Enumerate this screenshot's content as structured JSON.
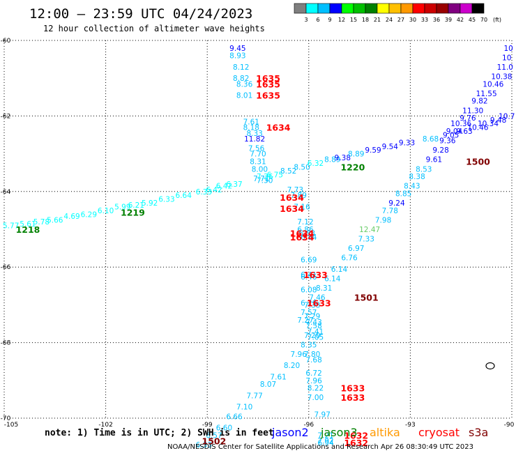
{
  "title": "12:00 — 23:59 UTC 04/24/2023",
  "subtitle": "12 hour collection of altimeter wave heights",
  "colorbar": {
    "labels": [
      "3",
      "6",
      "9",
      "12",
      "15",
      "18",
      "21",
      "24",
      "27",
      "30",
      "33",
      "36",
      "39",
      "42",
      "45",
      "70",
      "(ft)"
    ],
    "colors": [
      "#7f7f7f",
      "#00ffff",
      "#00bfff",
      "#0000ff",
      "#00ff00",
      "#00c000",
      "#008000",
      "#ffff00",
      "#ffc000",
      "#ff9900",
      "#ff0000",
      "#cc0000",
      "#990000",
      "#800080",
      "#cc00cc",
      "#000000"
    ]
  },
  "note": "note: 1) Time is in UTC; 2) SWH is in feet",
  "legend": [
    {
      "name": "jason2",
      "color": "#0000ff"
    },
    {
      "name": "jason3",
      "color": "#008000"
    },
    {
      "name": "altika",
      "color": "#ff9900"
    },
    {
      "name": "cryosat",
      "color": "#ff0000"
    },
    {
      "name": "s3a",
      "color": "#800000"
    }
  ],
  "credit": "NOAA/NESDIS Center for Satellite Applications and Research   Apr 26 08:30:49 UTC 2023",
  "chart_data": {
    "type": "scatter",
    "xlim": [
      -105,
      -90
    ],
    "ylim": [
      -70,
      -60
    ],
    "x_ticks": [
      -105,
      -102,
      -99,
      -96,
      -93,
      -90
    ],
    "x_tick_labels": [
      "-105",
      "-102",
      "-99",
      "-96",
      "-93",
      "-90"
    ],
    "y_ticks": [
      -60,
      -62,
      -64,
      -66,
      -68,
      -70
    ],
    "y_tick_labels": [
      "-60",
      "-62",
      "-64",
      "-66",
      "-68",
      "-70"
    ],
    "grid": true,
    "points": [
      {
        "lon": -98.1,
        "lat": -60.2,
        "v": "9.45",
        "c": "#0000ff"
      },
      {
        "lon": -98.1,
        "lat": -60.4,
        "v": "8.93",
        "c": "#00bfff"
      },
      {
        "lon": -98.0,
        "lat": -60.7,
        "v": "8.12",
        "c": "#00bfff"
      },
      {
        "lon": -98.0,
        "lat": -61.0,
        "v": "8.82",
        "c": "#00bfff"
      },
      {
        "lon": -97.9,
        "lat": -61.15,
        "v": "8.36",
        "c": "#00bfff"
      },
      {
        "lon": -97.9,
        "lat": -61.45,
        "v": "8.01",
        "c": "#00bfff"
      },
      {
        "lon": -97.7,
        "lat": -62.15,
        "v": "7.61",
        "c": "#00bfff"
      },
      {
        "lon": -97.7,
        "lat": -62.3,
        "v": "8.18",
        "c": "#00bfff"
      },
      {
        "lon": -97.6,
        "lat": -62.45,
        "v": "8.33",
        "c": "#00bfff"
      },
      {
        "lon": -97.6,
        "lat": -62.6,
        "v": "11.82",
        "c": "#0000ff"
      },
      {
        "lon": -97.55,
        "lat": -62.85,
        "v": "7.56",
        "c": "#00bfff"
      },
      {
        "lon": -97.5,
        "lat": -63.0,
        "v": "7.70",
        "c": "#00bfff"
      },
      {
        "lon": -97.5,
        "lat": -63.2,
        "v": "8.31",
        "c": "#00bfff"
      },
      {
        "lon": -97.45,
        "lat": -63.4,
        "v": "8.00",
        "c": "#00bfff"
      },
      {
        "lon": -97.4,
        "lat": -63.65,
        "v": "7.71",
        "c": "#00bfff"
      },
      {
        "lon": -97.3,
        "lat": -63.7,
        "v": "7.30",
        "c": "#00bfff"
      },
      {
        "lon": -96.4,
        "lat": -63.95,
        "v": "7.73",
        "c": "#00bfff"
      },
      {
        "lon": -96.3,
        "lat": -64.1,
        "v": "7.89",
        "c": "#00bfff"
      },
      {
        "lon": -96.2,
        "lat": -64.4,
        "v": "7.16",
        "c": "#00bfff"
      },
      {
        "lon": -96.1,
        "lat": -64.8,
        "v": "7.12",
        "c": "#00bfff"
      },
      {
        "lon": -96.1,
        "lat": -65.0,
        "v": "6.86",
        "c": "#00bfff"
      },
      {
        "lon": -96.05,
        "lat": -65.1,
        "v": "6.88",
        "c": "#00bfff"
      },
      {
        "lon": -96.0,
        "lat": -65.2,
        "v": "6.84",
        "c": "#00bfff"
      },
      {
        "lon": -96.0,
        "lat": -65.8,
        "v": "6.69",
        "c": "#00bfff"
      },
      {
        "lon": -96.0,
        "lat": -66.2,
        "v": "6.41",
        "c": "#00bfff"
      },
      {
        "lon": -96.0,
        "lat": -66.25,
        "v": "6.46",
        "c": "#00bfff"
      },
      {
        "lon": -96.0,
        "lat": -66.6,
        "v": "6.08",
        "c": "#00bfff"
      },
      {
        "lon": -96.0,
        "lat": -66.95,
        "v": "6.29",
        "c": "#00bfff"
      },
      {
        "lon": -95.9,
        "lat": -67.3,
        "v": "7.29",
        "c": "#00bfff"
      },
      {
        "lon": -95.85,
        "lat": -67.45,
        "v": "7.43",
        "c": "#00bfff"
      },
      {
        "lon": -95.85,
        "lat": -67.55,
        "v": "7.58",
        "c": "#00bfff"
      },
      {
        "lon": -95.8,
        "lat": -67.7,
        "v": "7.41",
        "c": "#00bfff"
      },
      {
        "lon": -95.9,
        "lat": -67.8,
        "v": "7.20",
        "c": "#00bfff"
      },
      {
        "lon": -95.8,
        "lat": -67.85,
        "v": "7.05",
        "c": "#00bfff"
      },
      {
        "lon": -96.0,
        "lat": -68.05,
        "v": "8.35",
        "c": "#00bfff"
      },
      {
        "lon": -96.3,
        "lat": -68.3,
        "v": "7.96",
        "c": "#00bfff"
      },
      {
        "lon": -96.5,
        "lat": -68.6,
        "v": "8.20",
        "c": "#00bfff"
      },
      {
        "lon": -96.9,
        "lat": -68.9,
        "v": "7.61",
        "c": "#00bfff"
      },
      {
        "lon": -97.2,
        "lat": -69.1,
        "v": "8.07",
        "c": "#00bfff"
      },
      {
        "lon": -97.6,
        "lat": -69.4,
        "v": "7.77",
        "c": "#00bfff"
      },
      {
        "lon": -97.9,
        "lat": -69.7,
        "v": "7.10",
        "c": "#00bfff"
      },
      {
        "lon": -98.2,
        "lat": -69.95,
        "v": "6.66",
        "c": "#00bfff"
      },
      {
        "lon": -98.5,
        "lat": -70.25,
        "v": "6.60",
        "c": "#00bfff"
      },
      {
        "lon": -98.8,
        "lat": -70.45,
        "v": "6.57",
        "c": "#00bfff"
      },
      {
        "lon": -99.1,
        "lat": -70.7,
        "v": "6.33",
        "c": "#00bfff"
      },
      {
        "lon": -104.8,
        "lat": -64.9,
        "v": "5.77",
        "c": "#00ffff"
      },
      {
        "lon": -104.3,
        "lat": -64.85,
        "v": "5.61",
        "c": "#00ffff"
      },
      {
        "lon": -103.9,
        "lat": -64.8,
        "v": "5.78",
        "c": "#00ffff"
      },
      {
        "lon": -103.5,
        "lat": -64.75,
        "v": "5.66",
        "c": "#00ffff"
      },
      {
        "lon": -103.0,
        "lat": -64.65,
        "v": "4.69",
        "c": "#00ffff"
      },
      {
        "lon": -102.5,
        "lat": -64.6,
        "v": "6.29",
        "c": "#00ffff"
      },
      {
        "lon": -102.0,
        "lat": -64.5,
        "v": "6.10",
        "c": "#00ffff"
      },
      {
        "lon": -101.5,
        "lat": -64.4,
        "v": "5.99",
        "c": "#00ffff"
      },
      {
        "lon": -101.1,
        "lat": -64.35,
        "v": "6.21",
        "c": "#00ffff"
      },
      {
        "lon": -100.7,
        "lat": -64.3,
        "v": "5.92",
        "c": "#00ffff"
      },
      {
        "lon": -100.2,
        "lat": -64.2,
        "v": "6.33",
        "c": "#00ffff"
      },
      {
        "lon": -99.7,
        "lat": -64.1,
        "v": "6.64",
        "c": "#00ffff"
      },
      {
        "lon": -99.1,
        "lat": -64.0,
        "v": "6.33",
        "c": "#00ffff"
      },
      {
        "lon": -98.8,
        "lat": -63.95,
        "v": "6.42",
        "c": "#00ffff"
      },
      {
        "lon": -98.5,
        "lat": -63.85,
        "v": "6.42",
        "c": "#00ffff"
      },
      {
        "lon": -98.2,
        "lat": -63.8,
        "v": "6.37",
        "c": "#00ffff"
      },
      {
        "lon": -97.3,
        "lat": -63.6,
        "v": "7.36",
        "c": "#00ffff"
      },
      {
        "lon": -97.0,
        "lat": -63.55,
        "v": "6.75",
        "c": "#00ffff"
      },
      {
        "lon": -96.6,
        "lat": -63.45,
        "v": "8.52",
        "c": "#00bfff"
      },
      {
        "lon": -96.2,
        "lat": -63.35,
        "v": "8.50",
        "c": "#00bfff"
      },
      {
        "lon": -95.8,
        "lat": -63.25,
        "v": "6.32",
        "c": "#00ffff"
      },
      {
        "lon": -95.3,
        "lat": -63.15,
        "v": "8.89",
        "c": "#00bfff"
      },
      {
        "lon": -95.0,
        "lat": -63.1,
        "v": "9.38",
        "c": "#0000ff"
      },
      {
        "lon": -94.6,
        "lat": -63.0,
        "v": "8.89",
        "c": "#00bfff"
      },
      {
        "lon": -94.1,
        "lat": -62.9,
        "v": "9.59",
        "c": "#0000ff"
      },
      {
        "lon": -93.6,
        "lat": -62.8,
        "v": "9.54",
        "c": "#0000ff"
      },
      {
        "lon": -93.1,
        "lat": -62.7,
        "v": "9.33",
        "c": "#0000ff"
      },
      {
        "lon": -92.4,
        "lat": -62.6,
        "v": "8.68",
        "c": "#00bfff"
      },
      {
        "lon": -91.8,
        "lat": -62.5,
        "v": "9.05",
        "c": "#0000ff"
      },
      {
        "lon": -91.4,
        "lat": -62.4,
        "v": "9.63",
        "c": "#0000ff"
      },
      {
        "lon": -91.0,
        "lat": -62.3,
        "v": "10.46",
        "c": "#0000ff"
      },
      {
        "lon": -90.7,
        "lat": -62.2,
        "v": "10.34",
        "c": "#0000ff"
      },
      {
        "lon": -90.4,
        "lat": -62.1,
        "v": "9.48",
        "c": "#0000ff"
      },
      {
        "lon": -90.15,
        "lat": -62.0,
        "v": "10.7",
        "c": "#0000ff"
      },
      {
        "lon": -90.1,
        "lat": -60.2,
        "v": "10",
        "c": "#0000ff"
      },
      {
        "lon": -90.15,
        "lat": -60.45,
        "v": "10",
        "c": "#0000ff"
      },
      {
        "lon": -90.2,
        "lat": -60.7,
        "v": "11.0",
        "c": "#0000ff"
      },
      {
        "lon": -90.3,
        "lat": -60.95,
        "v": "10.38",
        "c": "#0000ff"
      },
      {
        "lon": -90.55,
        "lat": -61.15,
        "v": "10.46",
        "c": "#0000ff"
      },
      {
        "lon": -90.75,
        "lat": -61.4,
        "v": "11.55",
        "c": "#0000ff"
      },
      {
        "lon": -90.95,
        "lat": -61.6,
        "v": "9.82",
        "c": "#0000ff"
      },
      {
        "lon": -91.15,
        "lat": -61.85,
        "v": "11.30",
        "c": "#0000ff"
      },
      {
        "lon": -91.3,
        "lat": -62.05,
        "v": "9.76",
        "c": "#0000ff"
      },
      {
        "lon": -91.5,
        "lat": -62.2,
        "v": "10.36",
        "c": "#0000ff"
      },
      {
        "lon": -91.7,
        "lat": -62.4,
        "v": "9.04",
        "c": "#0000ff"
      },
      {
        "lon": -91.9,
        "lat": -62.65,
        "v": "9.36",
        "c": "#0000ff"
      },
      {
        "lon": -92.1,
        "lat": -62.9,
        "v": "9.28",
        "c": "#0000ff"
      },
      {
        "lon": -92.3,
        "lat": -63.15,
        "v": "9.61",
        "c": "#0000ff"
      },
      {
        "lon": -92.6,
        "lat": -63.4,
        "v": "8.53",
        "c": "#00bfff"
      },
      {
        "lon": -92.8,
        "lat": -63.6,
        "v": "8.38",
        "c": "#00bfff"
      },
      {
        "lon": -92.95,
        "lat": -63.85,
        "v": "8.43",
        "c": "#00bfff"
      },
      {
        "lon": -93.2,
        "lat": -64.05,
        "v": "8.85",
        "c": "#00bfff"
      },
      {
        "lon": -93.4,
        "lat": -64.3,
        "v": "9.24",
        "c": "#0000ff"
      },
      {
        "lon": -93.6,
        "lat": -64.5,
        "v": "7.78",
        "c": "#00bfff"
      },
      {
        "lon": -93.8,
        "lat": -64.75,
        "v": "7.98",
        "c": "#00bfff"
      },
      {
        "lon": -94.2,
        "lat": -65.0,
        "v": "12.47",
        "c": "#66cc66"
      },
      {
        "lon": -94.3,
        "lat": -65.25,
        "v": "7.33",
        "c": "#00bfff"
      },
      {
        "lon": -94.6,
        "lat": -65.5,
        "v": "6.97",
        "c": "#00bfff"
      },
      {
        "lon": -94.8,
        "lat": -65.75,
        "v": "6.76",
        "c": "#00bfff"
      },
      {
        "lon": -95.1,
        "lat": -66.05,
        "v": "6.14",
        "c": "#00bfff"
      },
      {
        "lon": -95.3,
        "lat": -66.3,
        "v": "6.14",
        "c": "#00bfff"
      },
      {
        "lon": -95.55,
        "lat": -66.55,
        "v": "8.31",
        "c": "#00bfff"
      },
      {
        "lon": -95.75,
        "lat": -66.8,
        "v": "7.46",
        "c": "#00bfff"
      },
      {
        "lon": -95.9,
        "lat": -67.0,
        "v": "7.38",
        "c": "#00bfff"
      },
      {
        "lon": -96.0,
        "lat": -67.2,
        "v": "7.57",
        "c": "#00bfff"
      },
      {
        "lon": -96.1,
        "lat": -67.4,
        "v": "7.27",
        "c": "#00bfff"
      },
      {
        "lon": -95.9,
        "lat": -68.3,
        "v": "7.80",
        "c": "#00bfff"
      },
      {
        "lon": -95.85,
        "lat": -68.45,
        "v": "7.68",
        "c": "#00bfff"
      },
      {
        "lon": -95.85,
        "lat": -68.8,
        "v": "6.72",
        "c": "#00bfff"
      },
      {
        "lon": -95.85,
        "lat": -69.0,
        "v": "7.96",
        "c": "#00bfff"
      },
      {
        "lon": -95.8,
        "lat": -69.2,
        "v": "8.22",
        "c": "#00bfff"
      },
      {
        "lon": -95.8,
        "lat": -69.45,
        "v": "7.00",
        "c": "#00bfff"
      },
      {
        "lon": -95.6,
        "lat": -69.9,
        "v": "7.97",
        "c": "#00bfff"
      },
      {
        "lon": -95.5,
        "lat": -70.45,
        "v": "7.21",
        "c": "#00bfff"
      },
      {
        "lon": -95.5,
        "lat": -70.6,
        "v": "7.92",
        "c": "#00bfff"
      },
      {
        "lon": -95.5,
        "lat": -70.65,
        "v": "6.94",
        "c": "#00bfff"
      }
    ],
    "times": [
      {
        "lon": -97.2,
        "lat": -61.0,
        "t": "1635",
        "c": "#ff0000"
      },
      {
        "lon": -97.2,
        "lat": -61.15,
        "t": "1635",
        "c": "#ff0000"
      },
      {
        "lon": -97.2,
        "lat": -61.45,
        "t": "1635",
        "c": "#ff0000"
      },
      {
        "lon": -96.9,
        "lat": -62.3,
        "t": "1634",
        "c": "#ff0000"
      },
      {
        "lon": -96.5,
        "lat": -64.15,
        "t": "1634",
        "c": "#ff0000"
      },
      {
        "lon": -96.5,
        "lat": -64.45,
        "t": "1634",
        "c": "#ff0000"
      },
      {
        "lon": -96.2,
        "lat": -65.1,
        "t": "1634",
        "c": "#ff0000"
      },
      {
        "lon": -96.2,
        "lat": -65.2,
        "t": "1634",
        "c": "#ff0000"
      },
      {
        "lon": -95.8,
        "lat": -66.2,
        "t": "1633",
        "c": "#ff0000"
      },
      {
        "lon": -95.7,
        "lat": -66.95,
        "t": "1633",
        "c": "#ff0000"
      },
      {
        "lon": -94.7,
        "lat": -69.2,
        "t": "1633",
        "c": "#ff0000"
      },
      {
        "lon": -94.7,
        "lat": -69.45,
        "t": "1633",
        "c": "#ff0000"
      },
      {
        "lon": -94.6,
        "lat": -70.45,
        "t": "1632",
        "c": "#ff0000"
      },
      {
        "lon": -94.6,
        "lat": -70.65,
        "t": "1632",
        "c": "#ff0000"
      },
      {
        "lon": -94.7,
        "lat": -63.35,
        "t": "1220",
        "c": "#008000"
      },
      {
        "lon": -101.2,
        "lat": -64.55,
        "t": "1219",
        "c": "#008000"
      },
      {
        "lon": -104.3,
        "lat": -65.0,
        "t": "1218",
        "c": "#008000"
      },
      {
        "lon": -91.0,
        "lat": -63.2,
        "t": "1500",
        "c": "#800000"
      },
      {
        "lon": -94.3,
        "lat": -66.8,
        "t": "1501",
        "c": "#800000"
      },
      {
        "lon": -98.8,
        "lat": -70.6,
        "t": "1502",
        "c": "#800000"
      }
    ]
  }
}
